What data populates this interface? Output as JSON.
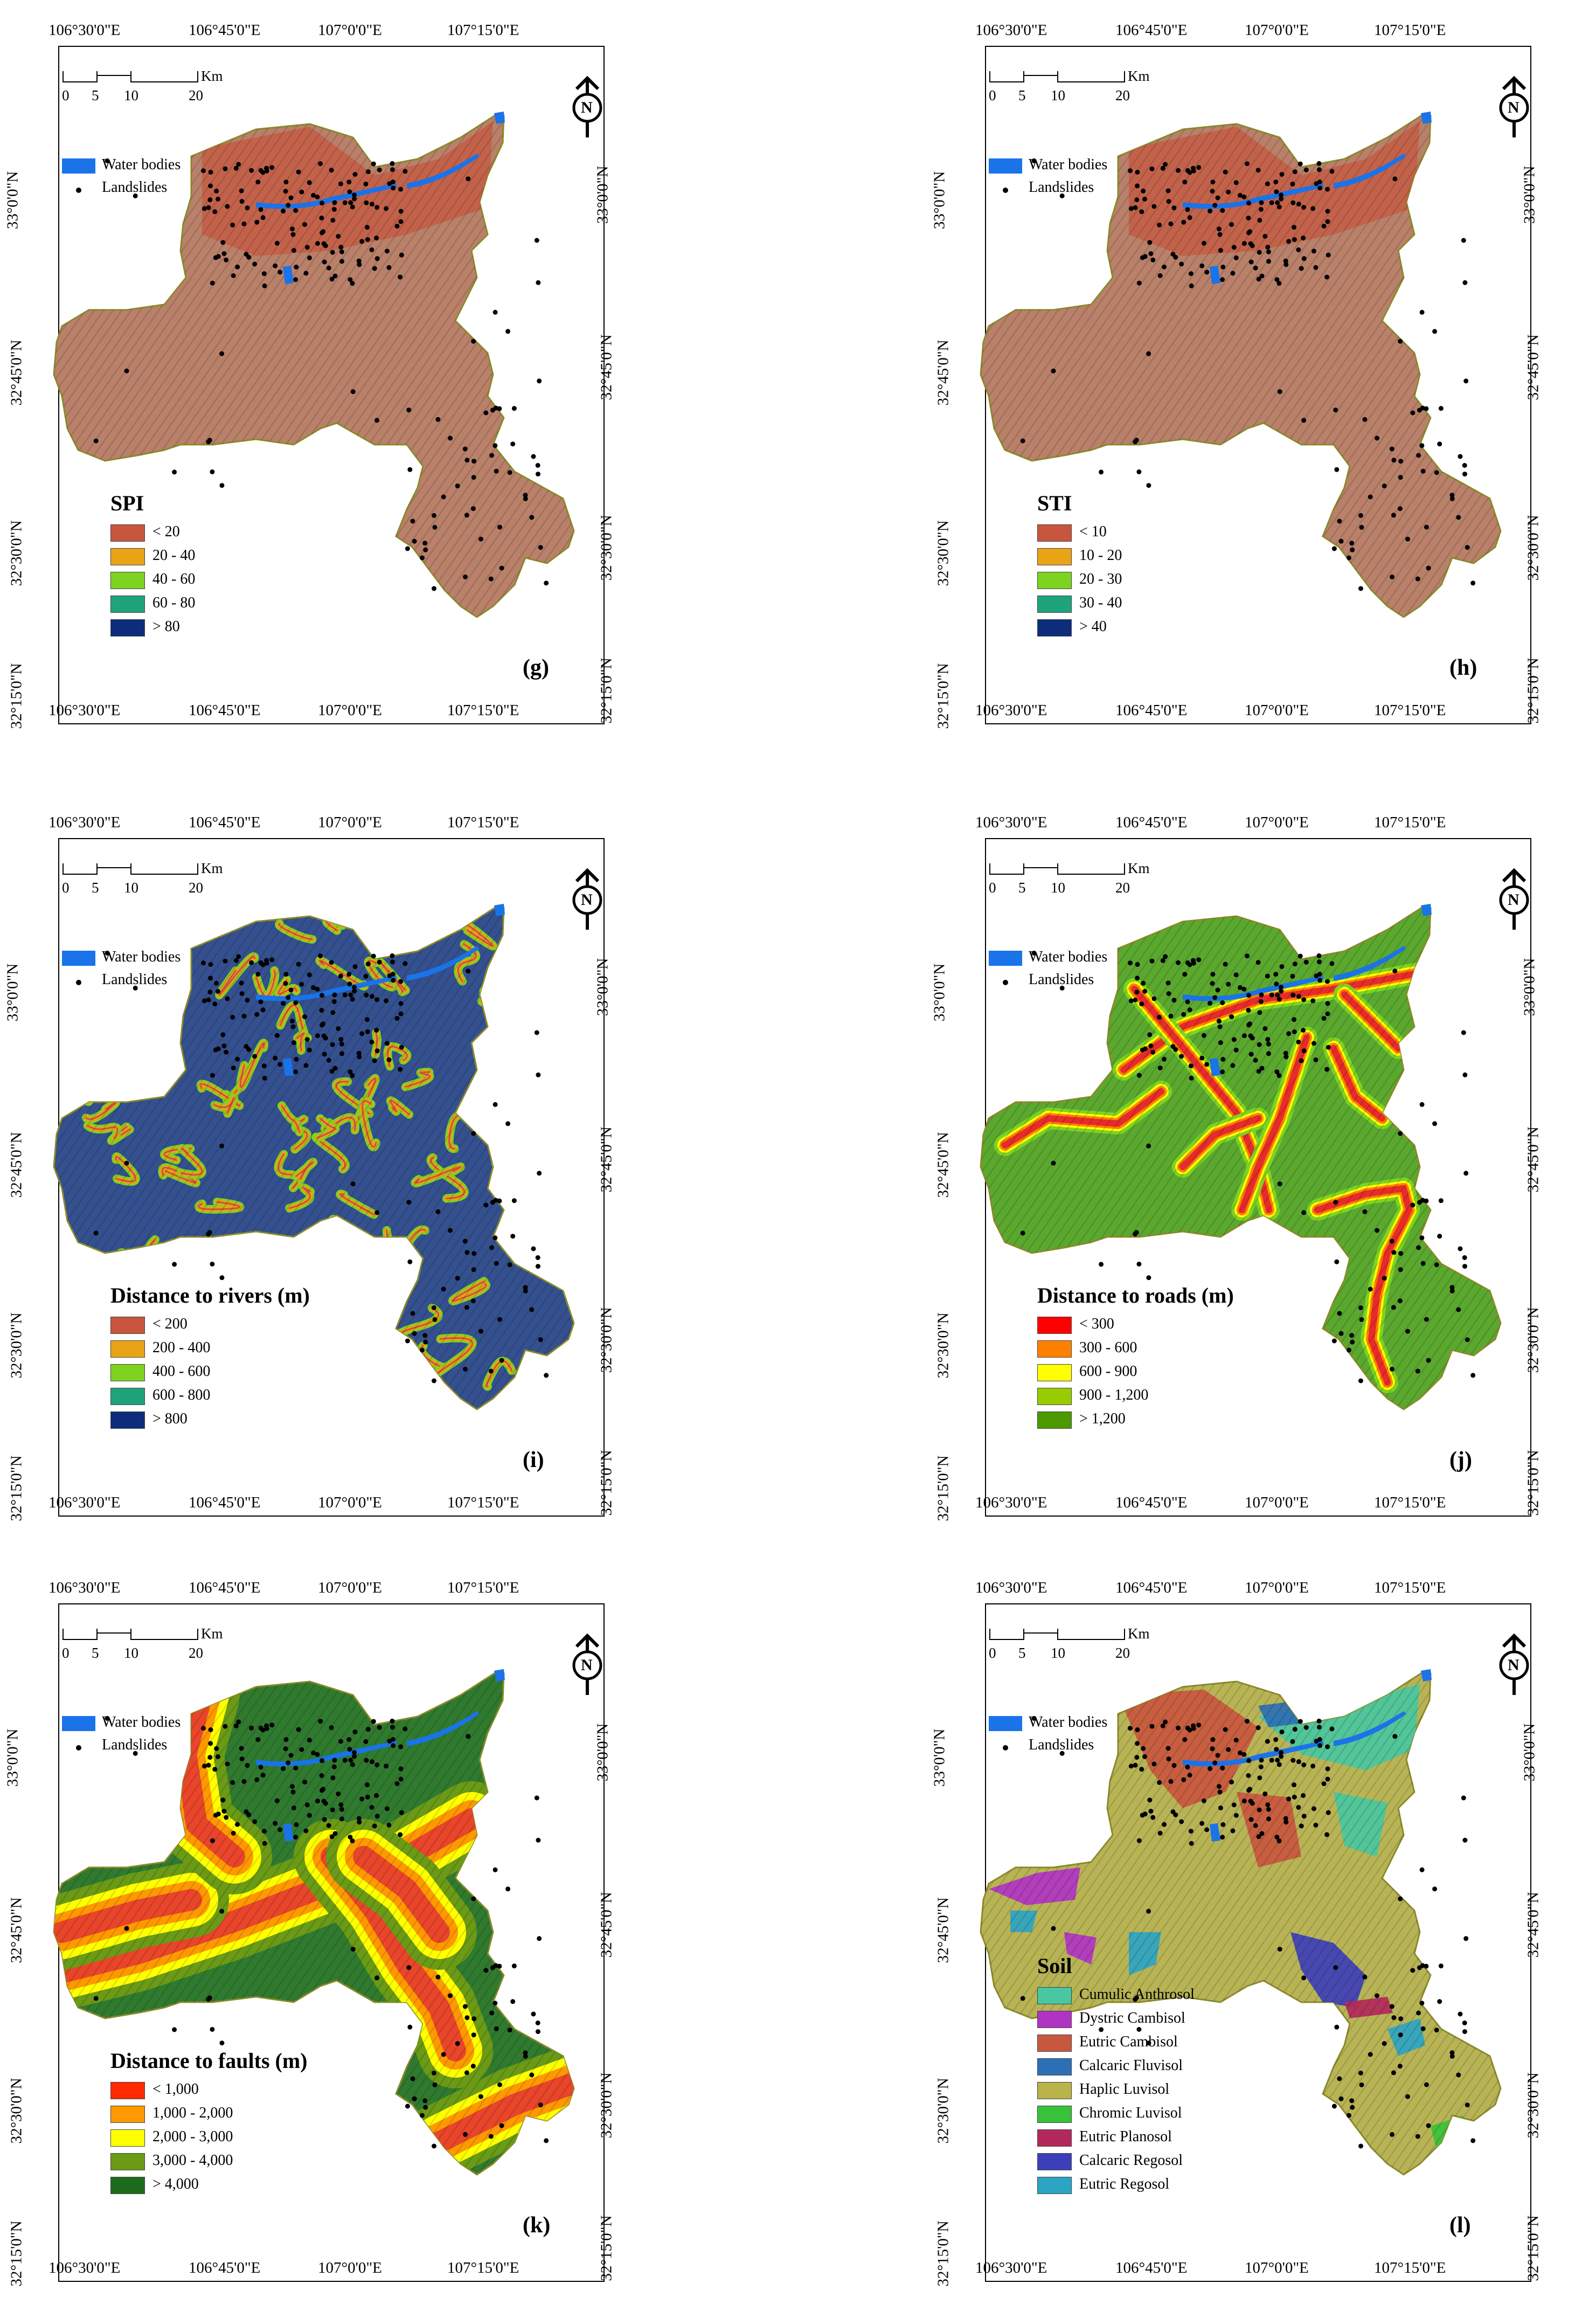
{
  "coords": {
    "top": [
      "106°30'0\"E",
      "106°45'0\"E",
      "107°0'0\"E",
      "107°15'0\"E"
    ],
    "bottom": [
      "106°30'0\"E",
      "106°45'0\"E",
      "107°0'0\"E",
      "107°15'0\"E"
    ],
    "left": [
      "33°0'0\"N",
      "32°45'0\"N",
      "32°30'0\"N",
      "32°15'0\"N"
    ],
    "right": [
      "33°0'0\"N",
      "32°45'0\"N",
      "32°30'0\"N",
      "32°15'0\"N"
    ]
  },
  "scale": {
    "unit": "Km",
    "ticks": [
      "0",
      "5",
      "10",
      "20"
    ]
  },
  "north_label": "N",
  "common_legend": {
    "water": "Water bodies",
    "landslides": "Landslides"
  },
  "colors": {
    "water": "#1a73e8",
    "landslide": "#000000"
  },
  "panels": [
    {
      "letter": "(g)",
      "legend_title": "SPI",
      "base_color": "#b9806a",
      "classes": [
        {
          "label": "< 20",
          "color": "#c8553d"
        },
        {
          "label": "20 - 40",
          "color": "#e8a317"
        },
        {
          "label": "40 - 60",
          "color": "#7ed321"
        },
        {
          "label": "60 - 80",
          "color": "#1fa37a"
        },
        {
          "label": "> 80",
          "color": "#0d2d7a"
        }
      ]
    },
    {
      "letter": "(h)",
      "legend_title": "STI",
      "base_color": "#b9806a",
      "classes": [
        {
          "label": "< 10",
          "color": "#c8553d"
        },
        {
          "label": "10 - 20",
          "color": "#e8a317"
        },
        {
          "label": "20 - 30",
          "color": "#7ed321"
        },
        {
          "label": "30 - 40",
          "color": "#1fa37a"
        },
        {
          "label": "> 40",
          "color": "#0d2d7a"
        }
      ]
    },
    {
      "letter": "(i)",
      "legend_title": "Distance to rivers (m)",
      "base_color": "#34508f",
      "line_color": "#d9a520",
      "classes": [
        {
          "label": "< 200",
          "color": "#c8553d"
        },
        {
          "label": "200 - 400",
          "color": "#e8a317"
        },
        {
          "label": "400 - 600",
          "color": "#7ed321"
        },
        {
          "label": "600 - 800",
          "color": "#1fa37a"
        },
        {
          "label": "> 800",
          "color": "#0d2d7a"
        }
      ]
    },
    {
      "letter": "(j)",
      "legend_title": "Distance to roads (m)",
      "base_color": "#5ba82f",
      "line_color": "#e52b2b",
      "classes": [
        {
          "label": "< 300",
          "color": "#ff0000"
        },
        {
          "label": "300 - 600",
          "color": "#ff8000"
        },
        {
          "label": "600 - 900",
          "color": "#ffff00"
        },
        {
          "label": "900 - 1,200",
          "color": "#99cc00"
        },
        {
          "label": "> 1,200",
          "color": "#4c9900"
        }
      ]
    },
    {
      "letter": "(k)",
      "legend_title": "Distance to faults (m)",
      "base_color": "#2f7a2f",
      "line_color": "#e8452a",
      "classes": [
        {
          "label": "< 1,000",
          "color": "#ff2a00"
        },
        {
          "label": "1,000 - 2,000",
          "color": "#ff9900"
        },
        {
          "label": "2,000 - 3,000",
          "color": "#ffff00"
        },
        {
          "label": "3,000 - 4,000",
          "color": "#6a9a16"
        },
        {
          "label": "> 4,000",
          "color": "#1e6b1e"
        }
      ]
    },
    {
      "letter": "(l)",
      "legend_title": "Soil",
      "base_color": "#b8b455",
      "classes": [
        {
          "label": "Cumulic Anthrosol",
          "color": "#49c7a0"
        },
        {
          "label": "Dystric Cambisol",
          "color": "#b034c4"
        },
        {
          "label": "Eutric Cambisol",
          "color": "#c8573f"
        },
        {
          "label": "Calcaric Fluvisol",
          "color": "#2d6fb5"
        },
        {
          "label": "Haplic Luvisol",
          "color": "#b9b34a"
        },
        {
          "label": "Chromic Luvisol",
          "color": "#38c23a"
        },
        {
          "label": "Eutric Planosol",
          "color": "#b3285c"
        },
        {
          "label": "Calcaric Regosol",
          "color": "#3d3fb8"
        },
        {
          "label": "Eutric Regosol",
          "color": "#2ca4c4"
        }
      ]
    }
  ]
}
